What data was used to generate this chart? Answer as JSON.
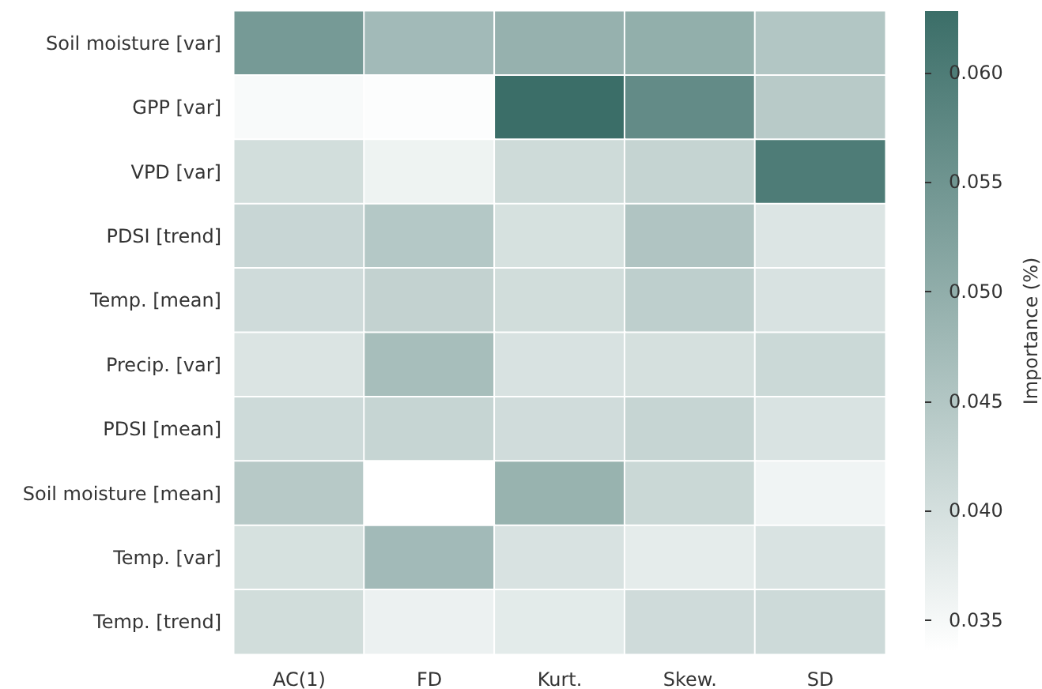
{
  "chart_data": {
    "type": "heatmap",
    "clabel": "Importance (%)",
    "categories": [
      "AC(1)",
      "FD",
      "Kurt.",
      "Skew.",
      "SD"
    ],
    "y_categories": [
      "Soil moisture [var]",
      "GPP [var]",
      "VPD [var]",
      "PDSI [trend]",
      "Temp. [mean]",
      "Precip. [var]",
      "PDSI [mean]",
      "Soil moisture [mean]",
      "Temp. [var]",
      "Temp. [trend]"
    ],
    "cells": [
      [
        0.054,
        0.0474,
        0.0493,
        0.0498,
        0.0451
      ],
      [
        0.0346,
        0.034,
        0.0628,
        0.0569,
        0.0442
      ],
      [
        0.0403,
        0.0361,
        0.0409,
        0.0423,
        0.0599
      ],
      [
        0.0418,
        0.0447,
        0.0397,
        0.0454,
        0.0388
      ],
      [
        0.0408,
        0.0426,
        0.0405,
        0.0433,
        0.0394
      ],
      [
        0.039,
        0.0467,
        0.0394,
        0.0399,
        0.0413
      ],
      [
        0.041,
        0.0421,
        0.0406,
        0.0421,
        0.0392
      ],
      [
        0.0444,
        0.0336,
        0.049,
        0.0415,
        0.0358
      ],
      [
        0.0397,
        0.0474,
        0.0394,
        0.0375,
        0.0392
      ],
      [
        0.0405,
        0.0364,
        0.0377,
        0.0408,
        0.041
      ]
    ],
    "colors": [
      "#ffffff",
      "#3b6e68"
    ],
    "clim": [
      0.0336,
      0.0628
    ],
    "cticks": [
      0.035,
      {
        "value": 0.04,
        "label": "0.040"
      },
      0.045,
      {
        "value": 0.05,
        "label": "0.050"
      },
      0.055,
      {
        "value": 0.06,
        "label": "0.060"
      }
    ]
  }
}
